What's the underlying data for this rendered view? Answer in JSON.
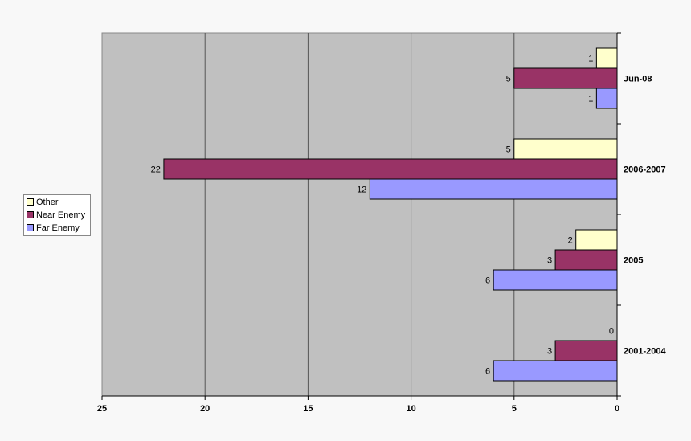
{
  "chart_data": {
    "type": "bar",
    "orientation": "horizontal",
    "x_reversed": true,
    "categories": [
      "Jun-08",
      "2006-2007",
      "2005",
      "2001-2004"
    ],
    "series": [
      {
        "name": "Other",
        "color": "#FFFFCC",
        "values": [
          1,
          5,
          2,
          0
        ]
      },
      {
        "name": "Near Enemy",
        "color": "#993366",
        "values": [
          5,
          22,
          3,
          3
        ]
      },
      {
        "name": "Far Enemy",
        "color": "#9999FF",
        "values": [
          1,
          12,
          6,
          6
        ]
      }
    ],
    "xlim": [
      0,
      25
    ],
    "xticks": [
      25,
      20,
      15,
      10,
      5,
      0
    ],
    "grid": true,
    "plot_background": "#C0C0C0",
    "legend_position": "left",
    "title": "",
    "xlabel": "",
    "ylabel": ""
  }
}
